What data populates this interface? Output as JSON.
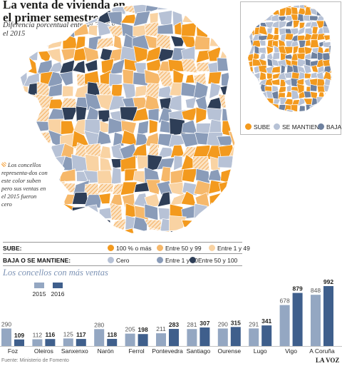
{
  "header": {
    "title": "La venta de vivienda en el primer semestre",
    "subtitle": "Diferencia porcentual entre el 2016 y el 2015"
  },
  "colors": {
    "sube_strong": "#f39a1e",
    "sube_mid": "#f6b86a",
    "sube_light": "#f9d3a3",
    "cero": "#b7c2d6",
    "baja_light": "#8a9cb9",
    "baja_strong": "#2e3e57",
    "bar_2015": "#94a7c2",
    "bar_2016": "#3f5f8c",
    "inset_sube": "#f39a1e",
    "inset_mantiene": "#b7c2d6",
    "inset_baja": "#6e819f"
  },
  "inset_legend": {
    "sube": "SUBE",
    "mantiene": "SE MANTIENE",
    "baja": "BAJA"
  },
  "note": "Los concellos representa-dos con este color suben pero sus ventas en el 2015 fueron cero",
  "legend": {
    "sube_label": "SUBE:",
    "sube_items": [
      "100 % o más",
      "Entre 50 y 99",
      "Entre 1 y 49"
    ],
    "baja_label": "BAJA O SE MANTIENE:",
    "baja_items": [
      "Cero",
      "Entre 1 y 50",
      "Entre 50 y 100"
    ]
  },
  "footer": {
    "source": "Fuente: Ministerio de Fomento",
    "brand": "LA VOZ"
  },
  "chart_data": {
    "type": "bar",
    "title": "Los concellos con más ventas",
    "categories": [
      "Foz",
      "Oleiros",
      "Sanxenxo",
      "Narón",
      "Ferrol",
      "Pontevedra",
      "Santiago",
      "Ourense",
      "Lugo",
      "Vigo",
      "A Coruña"
    ],
    "series": [
      {
        "name": "2015",
        "values": [
          290,
          112,
          125,
          280,
          205,
          211,
          281,
          290,
          291,
          678,
          848
        ]
      },
      {
        "name": "2016",
        "values": [
          109,
          116,
          117,
          118,
          198,
          283,
          307,
          315,
          341,
          879,
          992
        ]
      }
    ],
    "legend_position": "top-left",
    "grid": false
  }
}
